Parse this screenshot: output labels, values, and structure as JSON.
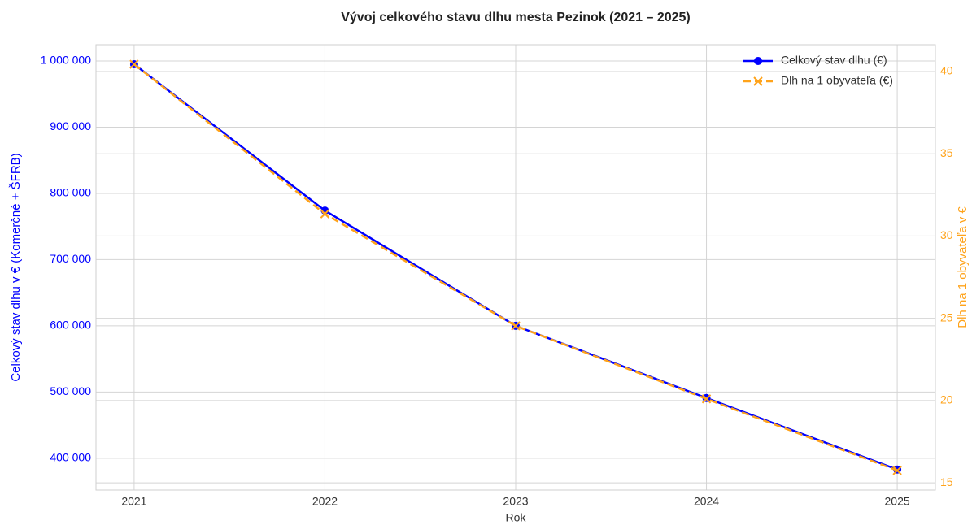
{
  "chart_data": {
    "type": "line",
    "title": "Vývoj celkového stavu dlhu mesta Pezinok (2021 – 2025)",
    "x_label": "Rok",
    "y_label": "Celkový stav dlhu v € (Komerčné + ŠFRB)",
    "y2_label": "Dlh na 1 obyvateľa v €",
    "x": [
      2021,
      2022,
      2023,
      2024,
      2025
    ],
    "xlim": [
      2020.8,
      2025.2
    ],
    "xticks": [
      2021,
      2022,
      2023,
      2024,
      2025
    ],
    "ylim": [
      352000,
      1024500
    ],
    "yticks": [
      {
        "value": 400000,
        "label": "400 000"
      },
      {
        "value": 500000,
        "label": "500 000"
      },
      {
        "value": 600000,
        "label": "600 000"
      },
      {
        "value": 700000,
        "label": "700 000"
      },
      {
        "value": 800000,
        "label": "800 000"
      },
      {
        "value": 900000,
        "label": "900 000"
      },
      {
        "value": 1000000,
        "label": "1 000 000"
      }
    ],
    "y2lim": [
      14.56,
      41.63
    ],
    "y2ticks": [
      15,
      20,
      25,
      30,
      35,
      40
    ],
    "grid": true,
    "legend": "upper right",
    "series": [
      {
        "name": "Celkový stav dlhu (€)",
        "color": "#0000ff",
        "values": [
          995000,
          774000,
          600000,
          491000,
          383000
        ]
      },
      {
        "name": "Dlh na 1 obyvateľa (€)",
        "color": "#ffa31a",
        "axis": "y2",
        "values": [
          40.44,
          31.35,
          24.54,
          20.1,
          15.75
        ]
      }
    ]
  }
}
